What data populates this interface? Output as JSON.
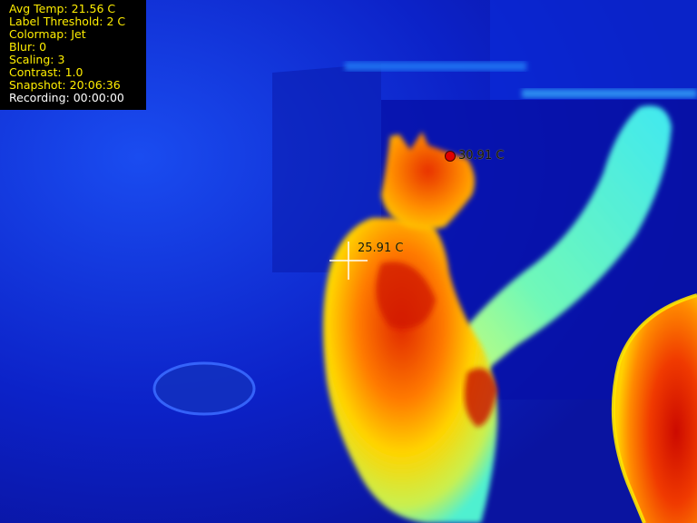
{
  "hud": {
    "avg_temp": "Avg Temp: 21.56 C",
    "label_threshold": "Label Threshold: 2 C",
    "colormap": "Colormap: Jet",
    "blur": "Blur: 0",
    "scaling": "Scaling: 3",
    "contrast": "Contrast: 1.0",
    "snapshot": "Snapshot: 20:06:36",
    "recording": "Recording: 00:00:00"
  },
  "markers": {
    "max_temp_label": "30.91 C",
    "center_temp_label": "25.91 C"
  },
  "colors": {
    "background": "#0a1ec8",
    "hud_text": "#ffee00",
    "hot": "#e61e00",
    "warm": "#ffa000",
    "mid": "#ffe600",
    "cool": "#32f0d2",
    "cold": "#0a1ec8"
  }
}
